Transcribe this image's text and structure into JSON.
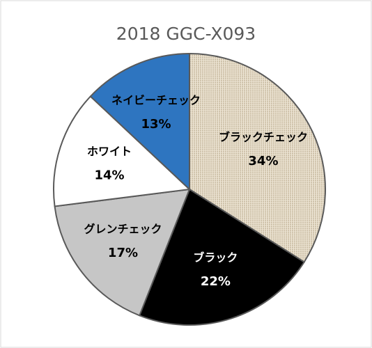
{
  "chart_data": {
    "type": "pie",
    "title": "2018 GGC-X093",
    "categories": [
      "ブラックチェック",
      "ブラック",
      "グレンチェック",
      "ホワイト",
      "ネイビーチェック"
    ],
    "values": [
      34,
      22,
      17,
      14,
      13
    ],
    "value_labels": [
      "34%",
      "22%",
      "17%",
      "14%",
      "13%"
    ],
    "colors": [
      "#ddd2bd",
      "#000000",
      "#c6c6c6",
      "#ffffff",
      "#2e75c0"
    ]
  }
}
